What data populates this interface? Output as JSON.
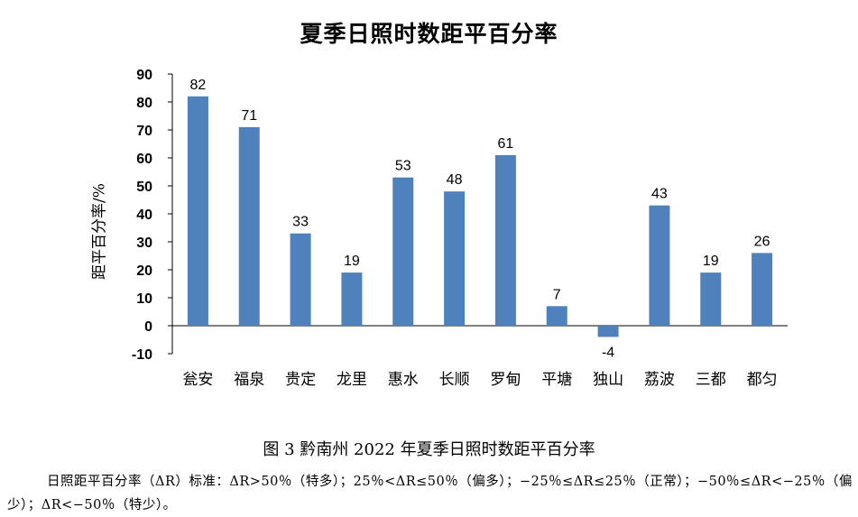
{
  "chart_data": {
    "type": "bar",
    "title": "夏季日照时数距平百分率",
    "ylabel": "距平百分率/%",
    "xlabel": "",
    "categories": [
      "瓮安",
      "福泉",
      "贵定",
      "龙里",
      "惠水",
      "长顺",
      "罗甸",
      "平塘",
      "独山",
      "荔波",
      "三都",
      "都匀"
    ],
    "values": [
      82,
      71,
      33,
      19,
      53,
      48,
      61,
      7,
      -4,
      43,
      19,
      26
    ],
    "value_labels": [
      "82",
      "71",
      "33",
      "19",
      "53",
      "48",
      "61",
      "7",
      "-4",
      "43",
      "19",
      "26"
    ],
    "ylim": [
      -10,
      90
    ],
    "yticks": [
      -10,
      0,
      10,
      20,
      30,
      40,
      50,
      60,
      70,
      80,
      90
    ],
    "grid": false,
    "bar_color": "#4f81bd"
  },
  "caption": "图 3  黔南州 2022 年夏季日照时数距平百分率",
  "note": "日照距平百分率（ΔR）标准：ΔR>50％（特多）；25％<ΔR≤50％（偏多）；−25％≤ΔR≤25％（正常）；−50％≤ΔR<−25％（偏少）；ΔR<−50％（特少）。"
}
